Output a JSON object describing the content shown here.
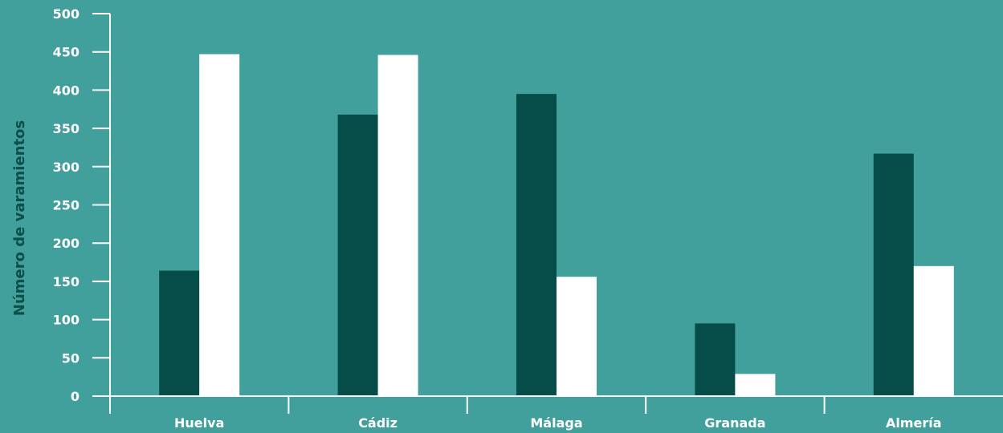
{
  "chart_data": {
    "type": "bar",
    "title": "",
    "xlabel": "",
    "ylabel": "Número de varamientos",
    "categories": [
      "Huelva",
      "Cádiz",
      "Málaga",
      "Granada",
      "Almería"
    ],
    "series": [
      {
        "values": [
          164,
          368,
          395,
          95,
          317
        ],
        "color": "#064d49"
      },
      {
        "values": [
          447,
          446,
          156,
          29,
          170
        ],
        "color": "#ffffff"
      }
    ],
    "ylim": [
      0,
      500
    ],
    "yticks": [
      0,
      50,
      100,
      150,
      200,
      250,
      300,
      350,
      400,
      450,
      500
    ],
    "grid": false,
    "legend": "none",
    "colors": {
      "background": "#419f9c",
      "axis": "#ffffff",
      "ylabel": "#0b4e4a"
    }
  }
}
